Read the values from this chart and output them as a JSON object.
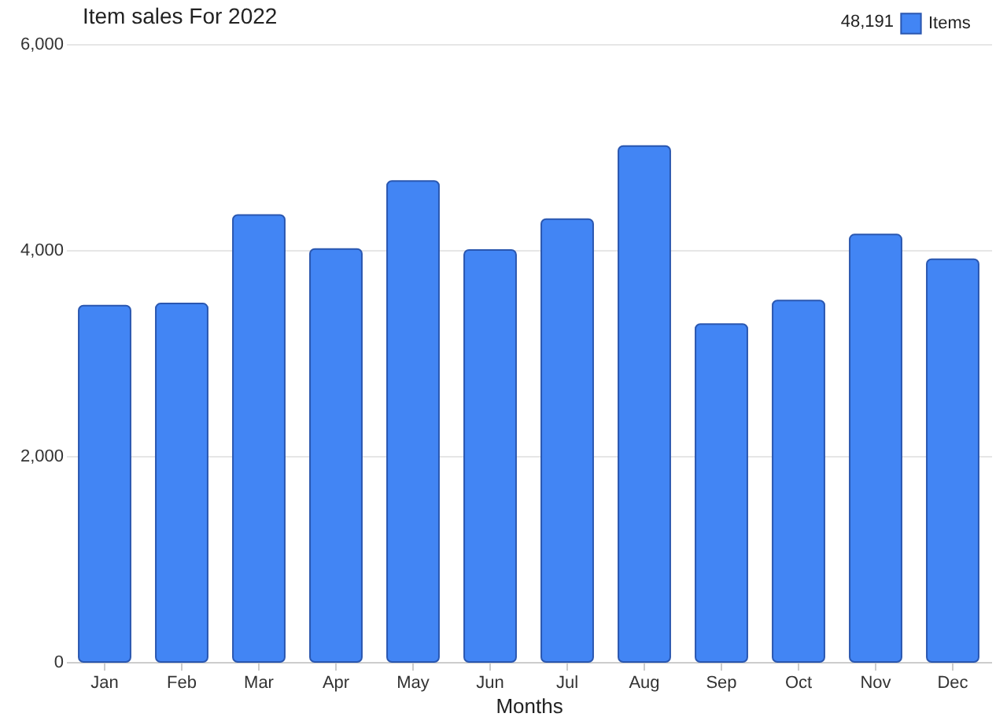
{
  "chart_data": {
    "type": "bar",
    "title": "Item sales For 2022",
    "xlabel": "Months",
    "categories": [
      "Jan",
      "Feb",
      "Mar",
      "Apr",
      "May",
      "Jun",
      "Jul",
      "Aug",
      "Sep",
      "Oct",
      "Nov",
      "Dec"
    ],
    "series": [
      {
        "name": "Items",
        "color": "#4285f4",
        "values": [
          3460,
          3480,
          4340,
          4010,
          4670,
          4000,
          4300,
          5010,
          3280,
          3510,
          4150,
          3910
        ]
      }
    ],
    "annotations": [
      "48,191"
    ],
    "ylim": [
      0,
      6000
    ],
    "yticks": [
      0,
      {
        "value": 2000,
        "label": "2,000"
      },
      {
        "value": 4000,
        "label": "4,000"
      },
      {
        "value": 6000,
        "label": "6,000"
      }
    ],
    "grid": "y",
    "legend": "top right"
  }
}
